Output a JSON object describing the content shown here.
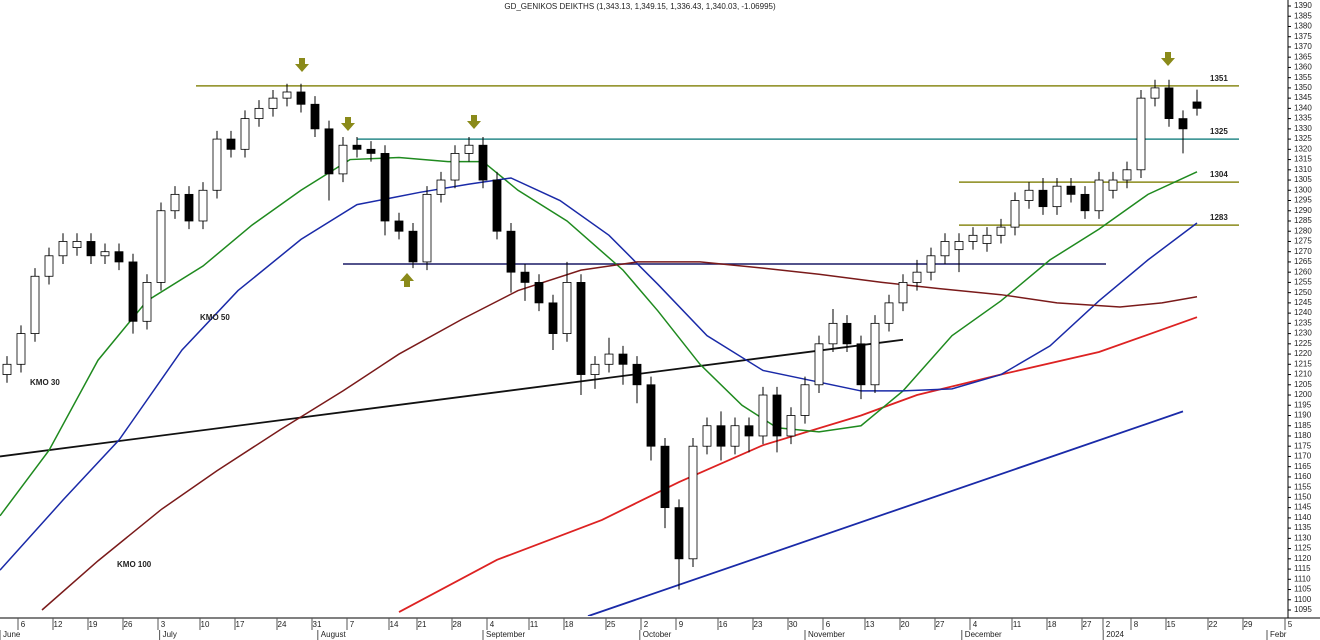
{
  "chart_data": {
    "type": "candlestick",
    "title": "GD_GENIKOS DEIKTHS (1,343.13, 1,349.15, 1,336.43, 1,340.03, -1.06995)",
    "xlim": [
      0,
      184
    ],
    "ylim": [
      1095,
      1390
    ],
    "x": [
      1,
      3,
      5,
      7,
      9,
      11,
      13,
      15,
      17,
      19,
      21,
      23,
      25,
      27,
      29,
      31,
      33,
      35,
      37,
      39,
      41,
      43,
      45,
      47,
      49,
      51,
      53,
      55,
      57,
      59,
      61,
      63,
      65,
      67,
      69,
      71,
      73,
      75,
      77,
      79,
      81,
      83,
      85,
      87,
      89,
      91,
      93,
      95,
      97,
      99,
      101,
      103,
      105,
      107,
      109,
      111,
      113,
      115,
      117,
      119,
      121,
      123,
      125,
      127,
      129,
      131,
      133,
      135,
      137,
      139,
      141,
      143,
      145,
      147,
      149,
      151,
      153,
      155,
      157,
      159,
      161,
      163,
      165,
      167,
      169,
      171
    ],
    "open": [
      1210,
      1215,
      1230,
      1258,
      1268,
      1272,
      1275,
      1268,
      1270,
      1265,
      1236,
      1255,
      1290,
      1298,
      1285,
      1300,
      1325,
      1320,
      1335,
      1340,
      1345,
      1348,
      1342,
      1330,
      1308,
      1322,
      1320,
      1318,
      1285,
      1280,
      1265,
      1298,
      1305,
      1318,
      1322,
      1305,
      1280,
      1260,
      1255,
      1245,
      1230,
      1255,
      1210,
      1215,
      1220,
      1215,
      1205,
      1175,
      1145,
      1120,
      1175,
      1185,
      1175,
      1185,
      1180,
      1200,
      1180,
      1190,
      1205,
      1225,
      1235,
      1225,
      1205,
      1235,
      1245,
      1255,
      1260,
      1268,
      1271,
      1275,
      1274,
      1278,
      1282,
      1295,
      1300,
      1292,
      1302,
      1298,
      1290,
      1300,
      1305,
      1310,
      1345,
      1350,
      1335,
      1343.13
    ],
    "high": [
      1219,
      1234,
      1262,
      1272,
      1279,
      1279,
      1279,
      1274,
      1274,
      1269,
      1259,
      1294,
      1302,
      1302,
      1304,
      1329,
      1329,
      1339,
      1344,
      1349,
      1352,
      1352,
      1346,
      1334,
      1326,
      1326,
      1324,
      1322,
      1289,
      1284,
      1302,
      1309,
      1322,
      1326,
      1326,
      1309,
      1284,
      1264,
      1259,
      1249,
      1265,
      1259,
      1219,
      1228,
      1224,
      1219,
      1209,
      1179,
      1149,
      1179,
      1189,
      1192,
      1189,
      1189,
      1204,
      1204,
      1194,
      1209,
      1229,
      1242,
      1239,
      1229,
      1239,
      1249,
      1259,
      1266,
      1272,
      1279,
      1279,
      1282,
      1282,
      1286,
      1299,
      1304,
      1306,
      1306,
      1306,
      1302,
      1309,
      1309,
      1314,
      1349,
      1354,
      1354,
      1339,
      1349.15
    ],
    "low": [
      1206,
      1211,
      1226,
      1254,
      1264,
      1268,
      1264,
      1264,
      1261,
      1230,
      1232,
      1251,
      1286,
      1281,
      1281,
      1296,
      1316,
      1316,
      1331,
      1336,
      1341,
      1338,
      1326,
      1295,
      1304,
      1316,
      1314,
      1278,
      1276,
      1262,
      1261,
      1294,
      1301,
      1314,
      1301,
      1276,
      1250,
      1246,
      1241,
      1222,
      1226,
      1200,
      1203,
      1211,
      1205,
      1196,
      1168,
      1135,
      1105,
      1116,
      1171,
      1168,
      1171,
      1172,
      1176,
      1172,
      1176,
      1186,
      1201,
      1221,
      1221,
      1198,
      1201,
      1231,
      1241,
      1251,
      1256,
      1264,
      1260,
      1271,
      1270,
      1274,
      1278,
      1291,
      1288,
      1288,
      1294,
      1286,
      1286,
      1296,
      1301,
      1306,
      1341,
      1331,
      1318,
      1336.43
    ],
    "close": [
      1215,
      1230,
      1258,
      1268,
      1275,
      1275,
      1268,
      1270,
      1265,
      1236,
      1255,
      1290,
      1298,
      1285,
      1300,
      1325,
      1320,
      1335,
      1340,
      1345,
      1348,
      1342,
      1330,
      1308,
      1322,
      1320,
      1318,
      1285,
      1280,
      1265,
      1298,
      1305,
      1318,
      1322,
      1305,
      1280,
      1260,
      1255,
      1245,
      1230,
      1255,
      1210,
      1215,
      1220,
      1215,
      1205,
      1175,
      1145,
      1120,
      1175,
      1185,
      1175,
      1185,
      1180,
      1200,
      1180,
      1190,
      1205,
      1225,
      1235,
      1225,
      1205,
      1235,
      1245,
      1255,
      1260,
      1268,
      1275,
      1275,
      1278,
      1278,
      1282,
      1295,
      1300,
      1292,
      1302,
      1298,
      1290,
      1305,
      1305,
      1310,
      1345,
      1350,
      1335,
      1330,
      1340.03
    ],
    "series": [
      {
        "name": "KMO 30",
        "color": "#1f8a1f",
        "x": [
          0,
          7,
          14,
          21,
          29,
          36,
          43,
          50,
          57,
          64,
          69,
          74,
          81,
          89,
          94,
          100,
          106,
          111,
          117,
          123,
          129,
          136,
          143,
          150,
          157,
          164,
          171
        ],
        "values": [
          1141,
          1173,
          1217,
          1246,
          1263,
          1283,
          1300,
          1315,
          1316,
          1314,
          1314,
          1300,
          1285,
          1261,
          1241,
          1215,
          1195,
          1184,
          1182,
          1185,
          1202,
          1229,
          1246,
          1266,
          1281,
          1298,
          1309
        ]
      },
      {
        "name": "KMO 50",
        "color": "#1a2aa8",
        "x": [
          0,
          9,
          17,
          26,
          34,
          43,
          51,
          60,
          67,
          73,
          80,
          87,
          94,
          101,
          109,
          116,
          123,
          129,
          136,
          143,
          150,
          157,
          164,
          171
        ],
        "values": [
          1114.5,
          1148.7,
          1178,
          1222,
          1251,
          1276,
          1293,
          1299,
          1303,
          1306,
          1295,
          1278,
          1254,
          1229,
          1212,
          1207,
          1202,
          1202,
          1203,
          1210,
          1224,
          1246,
          1266,
          1284
        ]
      },
      {
        "name": "KMO 100",
        "color": "#7a1a1a",
        "x": [
          6,
          14,
          23,
          31,
          40,
          49,
          57,
          66,
          74,
          83,
          91,
          100,
          109,
          117,
          126,
          134,
          143,
          151,
          160,
          166,
          171
        ],
        "values": [
          1095,
          1119,
          1144,
          1163,
          1183,
          1202,
          1220,
          1237,
          1251,
          1261,
          1265,
          1265,
          1262,
          1259,
          1255,
          1252,
          1249,
          1245,
          1243,
          1245,
          1248
        ]
      }
    ],
    "trendlines": [
      {
        "color": "#dd2222",
        "x": [
          57,
          71,
          86,
          97,
          109,
          123,
          131,
          143,
          157,
          171
        ],
        "values": [
          1094,
          1119.5,
          1139,
          1157.5,
          1175.5,
          1190,
          1200,
          1210,
          1221,
          1238
        ]
      },
      {
        "color": "#111111",
        "x": [
          0,
          129
        ],
        "values": [
          1170,
          1227
        ]
      },
      {
        "color": "#1a2aa8",
        "x": [
          84,
          169
        ],
        "values": [
          1092,
          1192
        ]
      }
    ],
    "levels": [
      {
        "value": 1351,
        "color": "#8a8a1a",
        "x": [
          28,
          177
        ]
      },
      {
        "value": 1325,
        "color": "#2a8a8a",
        "x": [
          51,
          177
        ]
      },
      {
        "value": 1304,
        "color": "#8a8a1a",
        "x": [
          137,
          177
        ]
      },
      {
        "value": 1283,
        "color": "#8a8a1a",
        "x": [
          137,
          177
        ]
      },
      {
        "value": 1264,
        "color": "#1a1a66",
        "x": [
          49,
          158
        ]
      }
    ],
    "yticks": [
      1095,
      1100,
      1105,
      1110,
      1115,
      1120,
      1125,
      1130,
      1135,
      1140,
      1145,
      1150,
      1155,
      1160,
      1165,
      1170,
      1175,
      1180,
      1185,
      1190,
      1195,
      1200,
      1205,
      1210,
      1215,
      1220,
      1225,
      1230,
      1235,
      1240,
      1245,
      1250,
      1255,
      1260,
      1265,
      1270,
      1275,
      1280,
      1285,
      1290,
      1295,
      1300,
      1305,
      1310,
      1315,
      1320,
      1325,
      1330,
      1335,
      1340,
      1345,
      1350,
      1355,
      1360,
      1365,
      1370,
      1375,
      1380,
      1385,
      1390
    ],
    "xticks": [
      {
        "value": 3,
        "label": "6"
      },
      {
        "value": 8,
        "label": "12"
      },
      {
        "value": 13,
        "label": "19"
      },
      {
        "value": 18,
        "label": "26"
      },
      {
        "value": 23,
        "label": "3"
      },
      {
        "value": 29,
        "label": "10"
      },
      {
        "value": 34,
        "label": "17"
      },
      {
        "value": 40,
        "label": "24"
      },
      {
        "value": 45,
        "label": "31"
      },
      {
        "value": 50,
        "label": "7"
      },
      {
        "value": 56,
        "label": "14"
      },
      {
        "value": 60,
        "label": "21"
      },
      {
        "value": 65,
        "label": "28"
      },
      {
        "value": 70,
        "label": "4"
      },
      {
        "value": 76,
        "label": "11"
      },
      {
        "value": 81,
        "label": "18"
      },
      {
        "value": 87,
        "label": "25"
      },
      {
        "value": 92,
        "label": "2"
      },
      {
        "value": 97,
        "label": "9"
      },
      {
        "value": 103,
        "label": "16"
      },
      {
        "value": 108,
        "label": "23"
      },
      {
        "value": 113,
        "label": "30"
      },
      {
        "value": 118,
        "label": "6"
      },
      {
        "value": 124,
        "label": "13"
      },
      {
        "value": 129,
        "label": "20"
      },
      {
        "value": 134,
        "label": "27"
      },
      {
        "value": 139,
        "label": "4"
      },
      {
        "value": 145,
        "label": "11"
      },
      {
        "value": 150,
        "label": "18"
      },
      {
        "value": 155,
        "label": "27"
      },
      {
        "value": 158,
        "label": "2"
      },
      {
        "value": 162,
        "label": "8"
      },
      {
        "value": 167,
        "label": "15"
      },
      {
        "value": 173,
        "label": "22"
      },
      {
        "value": 178,
        "label": "29"
      },
      {
        "value": 184,
        "label": "5"
      }
    ],
    "months": [
      {
        "value": 0,
        "label": "June"
      },
      {
        "value": 22.8,
        "label": "July"
      },
      {
        "value": 45.4,
        "label": "August"
      },
      {
        "value": 69,
        "label": "September"
      },
      {
        "value": 91.4,
        "label": "October"
      },
      {
        "value": 115,
        "label": "November"
      },
      {
        "value": 137.4,
        "label": "December"
      },
      {
        "value": 157.6,
        "label": "2024"
      },
      {
        "value": 181,
        "label": "Febr"
      }
    ]
  }
}
